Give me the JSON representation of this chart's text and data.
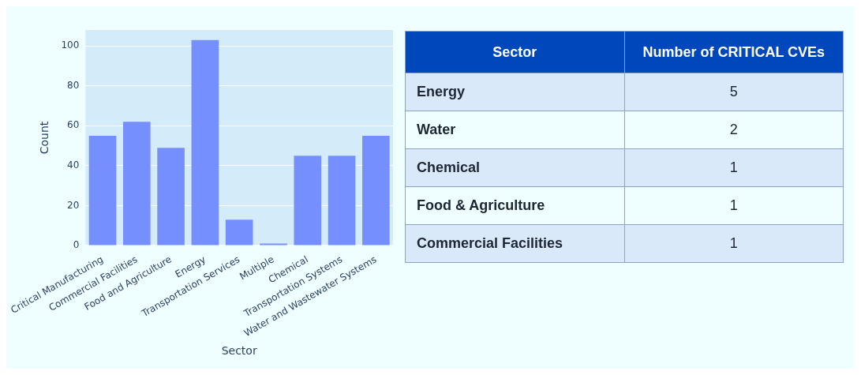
{
  "chart_data": [
    {
      "type": "bar",
      "xlabel": "Sector",
      "ylabel": "Count",
      "categories": [
        "Critical Manufacturing",
        "Commercial Facilities",
        "Food and Agriculture",
        "Energy",
        "Transportation Services",
        "Multiple",
        "Chemical",
        "Transportation Systems",
        "Water and Wastewater Systems"
      ],
      "values": [
        55,
        62,
        49,
        103,
        13,
        1,
        45,
        45,
        55
      ],
      "color": "#7590fe",
      "ylim": [
        0,
        108
      ],
      "yticks": [
        0,
        20,
        40,
        60,
        80,
        100
      ],
      "grid": "y"
    },
    {
      "type": "other",
      "xlabel": "Sector",
      "ylabel": "Number of CRITICAL CVEs",
      "categories": [
        "Energy",
        "Water",
        "Chemical",
        "Food & Agriculture",
        "Commercial Facilities"
      ],
      "values": [
        5,
        2,
        1,
        1,
        1
      ],
      "data_labels": true
    }
  ]
}
